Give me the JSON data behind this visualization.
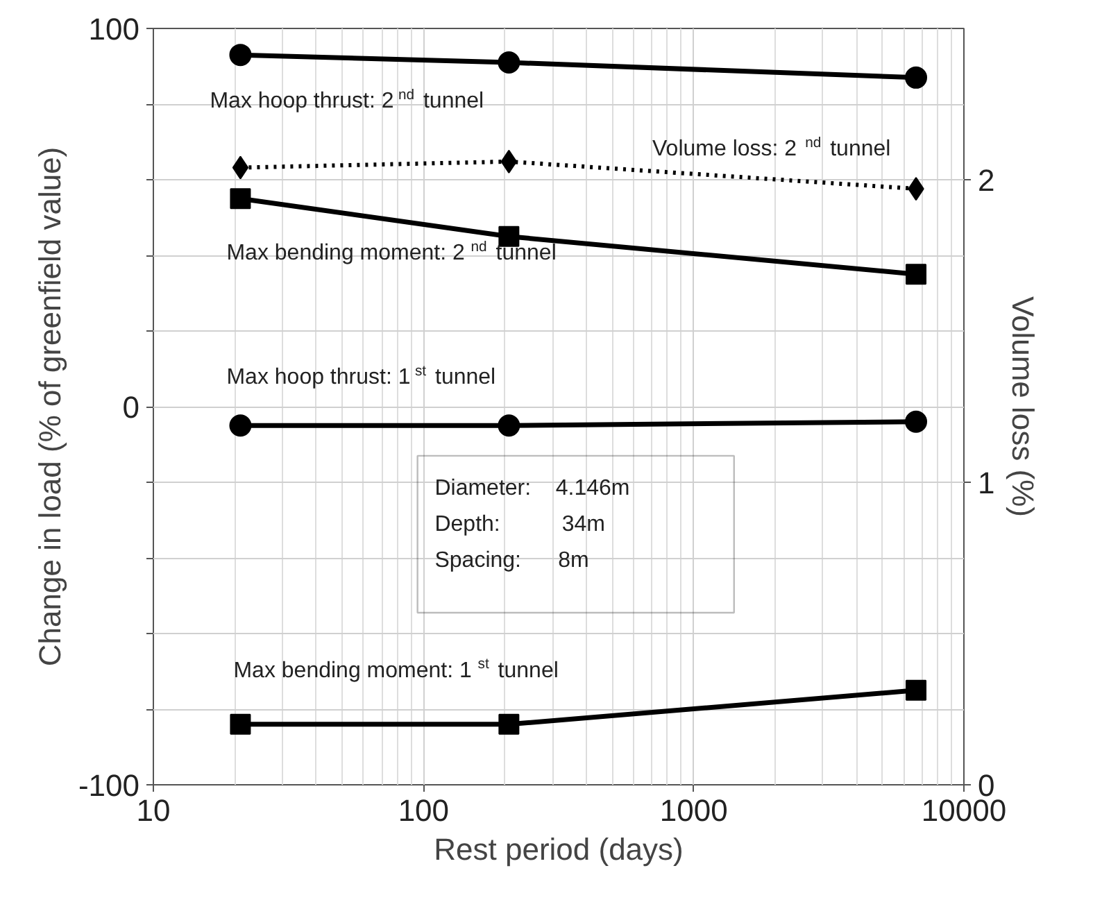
{
  "chart_data": {
    "type": "line",
    "xlabel": "Rest period (days)",
    "ylabel": "Change in load (% of greenfield value)",
    "y2label": "Volume loss (%)",
    "x": [
      21,
      207,
      6650
    ],
    "log": "x",
    "grid": true,
    "xlim": [
      10,
      10000
    ],
    "xticks": [
      10,
      100,
      1000,
      10000
    ],
    "ylim": [
      -100,
      100
    ],
    "yticks": [
      -100,
      {
        "value": -80,
        "label": null
      },
      {
        "value": -60,
        "label": null
      },
      {
        "value": -40,
        "label": null
      },
      {
        "value": -20,
        "label": null
      },
      0,
      {
        "value": 20,
        "label": null
      },
      {
        "value": 40,
        "label": null
      },
      {
        "value": 60,
        "label": null
      },
      {
        "value": 80,
        "label": null
      },
      100
    ],
    "y2lim": [
      0,
      2.5
    ],
    "y2ticks": [
      0,
      1,
      2
    ],
    "series": [
      {
        "name": "Max hoop thrust: 2$^{nd}$ tunnel",
        "color": "#000000",
        "marker": "circle",
        "line_style": "solid",
        "values": [
          93,
          91,
          87
        ]
      },
      {
        "name": "Volume loss: 2$^{nd}$ tunnel",
        "color": "#000000",
        "marker": "diamond",
        "line_style": "dotted",
        "axis": "y2",
        "values": [
          2.04,
          2.06,
          1.97
        ]
      },
      {
        "name": "Max bending moment: 2$^{nd}$ tunnel",
        "color": "#000000",
        "marker": "square",
        "line_style": "solid",
        "values": [
          55,
          45,
          35
        ]
      },
      {
        "name": "Max hoop thrust: 1$^{st}$ tunnel",
        "color": "#000000",
        "marker": "circle",
        "line_style": "solid",
        "values": [
          -5,
          -5,
          -4
        ]
      },
      {
        "name": "Max bending moment: 1$^{st}$ tunnel",
        "color": "#000000",
        "marker": "square",
        "line_style": "solid",
        "values": [
          -84,
          -84,
          -75
        ]
      }
    ],
    "annotations": [
      "Diameter:    4.146m",
      "Depth:          34m",
      "Spacing:      8m"
    ]
  }
}
